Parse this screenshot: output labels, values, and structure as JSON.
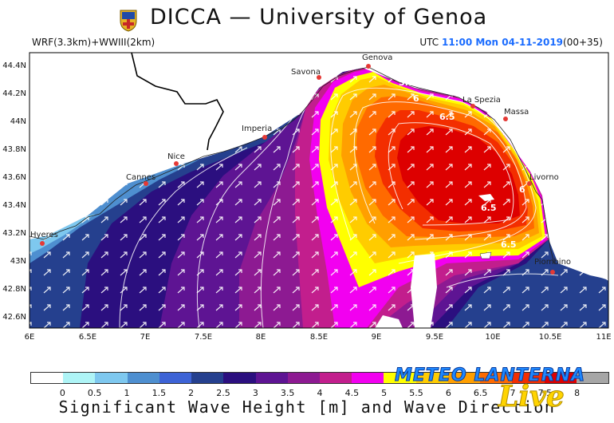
{
  "header": {
    "title": "DICCA — University of Genoa",
    "model": "WRF(3.3km)+WWIII(2km)",
    "utc_prefix": "UTC",
    "utc_time": "11:00 Mon 04-11-2019",
    "utc_suffix": "(00+35)"
  },
  "map": {
    "lat_labels": [
      "44.4N",
      "44.2N",
      "44N",
      "43.8N",
      "43.6N",
      "43.4N",
      "43.2N",
      "43N",
      "42.8N",
      "42.6N"
    ],
    "lon_labels": [
      "6E",
      "6.5E",
      "7E",
      "7.5E",
      "8E",
      "8.5E",
      "9E",
      "9.5E",
      "10E",
      "10.5E",
      "11E"
    ],
    "cities": [
      {
        "name": "Genova"
      },
      {
        "name": "Savona"
      },
      {
        "name": "La Spezia"
      },
      {
        "name": "Massa"
      },
      {
        "name": "Imperia"
      },
      {
        "name": "Nice"
      },
      {
        "name": "Cannes"
      },
      {
        "name": "Livorno"
      },
      {
        "name": "Hyeres"
      },
      {
        "name": "Piombino"
      }
    ],
    "contour_labels": [
      "5.5",
      "6",
      "6.5",
      "6.5",
      "6",
      "6.5"
    ]
  },
  "colorbar": {
    "labels": [
      "0",
      "0.5",
      "1",
      "1.5",
      "2",
      "2.5",
      "3",
      "3.5",
      "4",
      "4.5",
      "5",
      "5.5",
      "6",
      "6.5",
      "7",
      "7.5",
      "8"
    ],
    "colors": [
      "#ffffff",
      "#aef4f6",
      "#7ec8ef",
      "#4e8fd0",
      "#3d63d6",
      "#25408e",
      "#2b0f7f",
      "#5e1493",
      "#8d1a92",
      "#c21e8d",
      "#f200f0",
      "#ffff00",
      "#ffcc00",
      "#ff9f00",
      "#ff6a00",
      "#f32e00",
      "#dd0000",
      "#a6a6a6"
    ],
    "title": "Significant Wave Height [m] and Wave Direction"
  },
  "brand": {
    "text": "METEO LANTERNA",
    "live": "Live"
  }
}
